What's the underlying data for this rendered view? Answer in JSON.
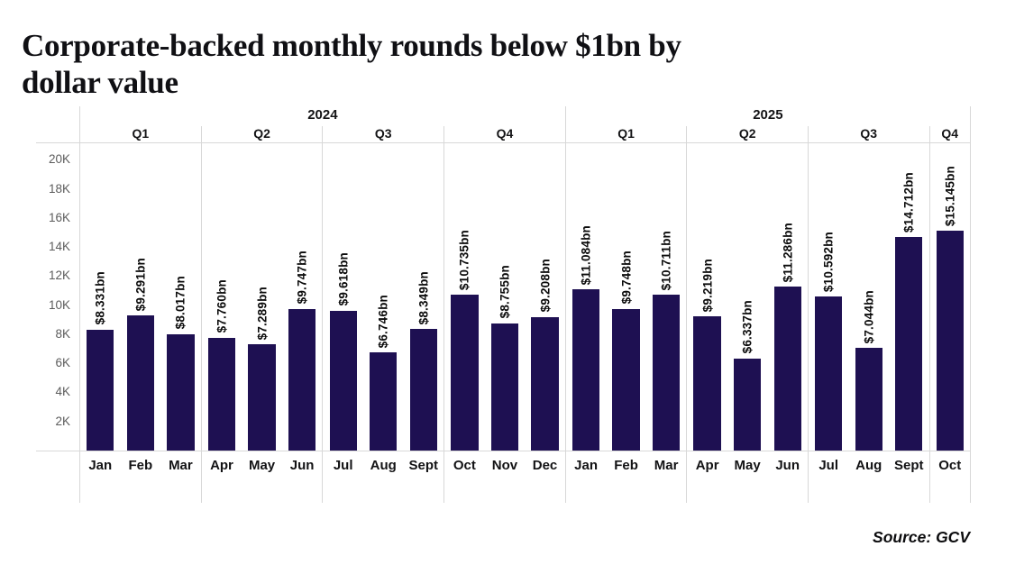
{
  "title_line1": "Corporate-backed monthly rounds below $1bn by",
  "title_line2": "dollar value",
  "source": "Source: GCV",
  "colors": {
    "bar": "#1e1052",
    "axis_line": "#d8d8d8",
    "tick_text": "#5c5c5c",
    "label_text": "#0b0b0b"
  },
  "chart_data": {
    "type": "bar",
    "title": "Corporate-backed monthly rounds below $1bn by dollar value",
    "xlabel": "",
    "ylabel": "",
    "ylim": [
      0,
      21200
    ],
    "grid": false,
    "legend": false,
    "yticks": [
      {
        "value": 2000,
        "label": "2K"
      },
      {
        "value": 4000,
        "label": "4K"
      },
      {
        "value": 6000,
        "label": "6K"
      },
      {
        "value": 8000,
        "label": "8K"
      },
      {
        "value": 10000,
        "label": "10K"
      },
      {
        "value": 12000,
        "label": "12K"
      },
      {
        "value": 14000,
        "label": "14K"
      },
      {
        "value": 16000,
        "label": "16K"
      },
      {
        "value": 18000,
        "label": "18K"
      },
      {
        "value": 20000,
        "label": "20K"
      }
    ],
    "years": [
      {
        "label": "2024",
        "quarters": [
          {
            "label": "Q1",
            "months": [
              {
                "label": "Jan",
                "value": 8331,
                "value_label": "$8.331bn"
              },
              {
                "label": "Feb",
                "value": 9291,
                "value_label": "$9.291bn"
              },
              {
                "label": "Mar",
                "value": 8017,
                "value_label": "$8.017bn"
              }
            ]
          },
          {
            "label": "Q2",
            "months": [
              {
                "label": "Apr",
                "value": 7760,
                "value_label": "$7.760bn"
              },
              {
                "label": "May",
                "value": 7289,
                "value_label": "$7.289bn"
              },
              {
                "label": "Jun",
                "value": 9747,
                "value_label": "$9.747bn"
              }
            ]
          },
          {
            "label": "Q3",
            "months": [
              {
                "label": "Jul",
                "value": 9618,
                "value_label": "$9.618bn"
              },
              {
                "label": "Aug",
                "value": 6746,
                "value_label": "$6.746bn"
              },
              {
                "label": "Sept",
                "value": 8349,
                "value_label": "$8.349bn"
              }
            ]
          },
          {
            "label": "Q4",
            "months": [
              {
                "label": "Oct",
                "value": 10735,
                "value_label": "$10.735bn"
              },
              {
                "label": "Nov",
                "value": 8755,
                "value_label": "$8.755bn"
              },
              {
                "label": "Dec",
                "value": 9208,
                "value_label": "$9.208bn"
              }
            ]
          }
        ]
      },
      {
        "label": "2025",
        "quarters": [
          {
            "label": "Q1",
            "months": [
              {
                "label": "Jan",
                "value": 11084,
                "value_label": "$11.084bn"
              },
              {
                "label": "Feb",
                "value": 9748,
                "value_label": "$9.748bn"
              },
              {
                "label": "Mar",
                "value": 10711,
                "value_label": "$10.711bn"
              }
            ]
          },
          {
            "label": "Q2",
            "months": [
              {
                "label": "Apr",
                "value": 9219,
                "value_label": "$9.219bn"
              },
              {
                "label": "May",
                "value": 6337,
                "value_label": "$6.337bn"
              },
              {
                "label": "Jun",
                "value": 11286,
                "value_label": "$11.286bn"
              }
            ]
          },
          {
            "label": "Q3",
            "months": [
              {
                "label": "Jul",
                "value": 10592,
                "value_label": "$10.592bn"
              },
              {
                "label": "Aug",
                "value": 7044,
                "value_label": "$7.044bn"
              },
              {
                "label": "Sept",
                "value": 14712,
                "value_label": "$14.712bn"
              }
            ]
          },
          {
            "label": "Q4",
            "months": [
              {
                "label": "Oct",
                "value": 15145,
                "value_label": "$15.145bn"
              }
            ]
          }
        ]
      }
    ]
  }
}
